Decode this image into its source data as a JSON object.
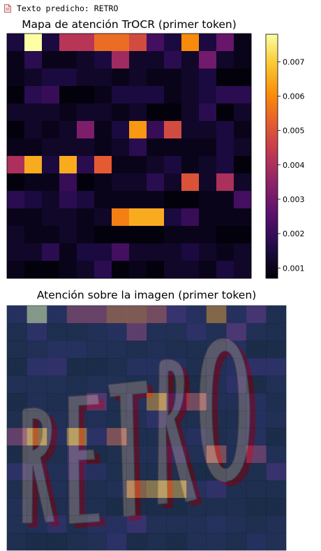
{
  "output": {
    "text": "Texto predicho: RETRO",
    "icon": "output-file-icon"
  },
  "chart_data": [
    {
      "type": "heatmap",
      "title": "Mapa de atención TrOCR (primer token)",
      "colormap": "inferno",
      "rows": 14,
      "cols": 14,
      "colorbar": {
        "min": 0.0007,
        "max": 0.0078,
        "ticks": [
          0.001,
          0.002,
          0.003,
          0.004,
          0.005,
          0.006,
          0.007
        ],
        "tick_labels": [
          "0.001",
          "0.002",
          "0.003",
          "0.004",
          "0.005",
          "0.006",
          "0.007"
        ]
      },
      "values": [
        [
          0.0015,
          0.0078,
          0.0015,
          0.0042,
          0.0042,
          0.0055,
          0.0055,
          0.0048,
          0.0022,
          0.0015,
          0.006,
          0.0015,
          0.0028,
          0.001
        ],
        [
          0.001,
          0.0018,
          0.001,
          0.001,
          0.0012,
          0.0015,
          0.0038,
          0.0012,
          0.0012,
          0.0018,
          0.0012,
          0.003,
          0.0012,
          0.001
        ],
        [
          0.001,
          0.0012,
          0.0015,
          0.0015,
          0.0012,
          0.0012,
          0.001,
          0.0012,
          0.001,
          0.001,
          0.0012,
          0.0015,
          0.0008,
          0.0008
        ],
        [
          0.0008,
          0.0018,
          0.002,
          0.0008,
          0.0008,
          0.001,
          0.0015,
          0.0015,
          0.0015,
          0.001,
          0.0012,
          0.0015,
          0.0018,
          0.0018
        ],
        [
          0.0012,
          0.0012,
          0.0012,
          0.001,
          0.0012,
          0.0012,
          0.001,
          0.0012,
          0.0008,
          0.0008,
          0.0012,
          0.0018,
          0.0008,
          0.0012
        ],
        [
          0.0008,
          0.0012,
          0.001,
          0.0012,
          0.0032,
          0.001,
          0.0015,
          0.0062,
          0.002,
          0.0048,
          0.0012,
          0.0012,
          0.0015,
          0.001
        ],
        [
          0.001,
          0.001,
          0.0012,
          0.0012,
          0.0012,
          0.001,
          0.0012,
          0.0018,
          0.001,
          0.001,
          0.001,
          0.001,
          0.0015,
          0.0012
        ],
        [
          0.004,
          0.0065,
          0.0015,
          0.0065,
          0.0018,
          0.0052,
          0.001,
          0.001,
          0.0012,
          0.0015,
          0.001,
          0.0012,
          0.0015,
          0.0008
        ],
        [
          0.0008,
          0.001,
          0.001,
          0.002,
          0.0008,
          0.001,
          0.0012,
          0.0012,
          0.0018,
          0.0012,
          0.005,
          0.0012,
          0.004,
          0.0012
        ],
        [
          0.0018,
          0.0015,
          0.0012,
          0.0018,
          0.0015,
          0.001,
          0.001,
          0.001,
          0.001,
          0.0008,
          0.0008,
          0.001,
          0.001,
          0.0022
        ],
        [
          0.001,
          0.001,
          0.0012,
          0.0012,
          0.001,
          0.0012,
          0.0058,
          0.0065,
          0.0065,
          0.0015,
          0.002,
          0.001,
          0.001,
          0.001
        ],
        [
          0.0012,
          0.001,
          0.001,
          0.0012,
          0.001,
          0.0008,
          0.0008,
          0.0008,
          0.0008,
          0.001,
          0.001,
          0.001,
          0.0008,
          0.0008
        ],
        [
          0.0012,
          0.0012,
          0.0018,
          0.001,
          0.0015,
          0.0015,
          0.0022,
          0.0012,
          0.0012,
          0.0012,
          0.0015,
          0.0012,
          0.001,
          0.0012
        ],
        [
          0.001,
          0.0008,
          0.0008,
          0.001,
          0.0012,
          0.0018,
          0.0008,
          0.001,
          0.0008,
          0.0012,
          0.0012,
          0.001,
          0.0015,
          0.0012
        ]
      ]
    },
    {
      "type": "heatmap",
      "title": "Atención sobre la imagen (primer token)",
      "overlay": true,
      "underlying_image_text": "RETRO",
      "rows": 14,
      "cols": 14,
      "colormap": "inferno",
      "values_ref": "chart_data.0.values"
    }
  ],
  "colors": {
    "background": "#ffffff",
    "photo_background": "#2b4a72",
    "letter_face": "#9aa1a6",
    "letter_side": "#8b2035"
  }
}
